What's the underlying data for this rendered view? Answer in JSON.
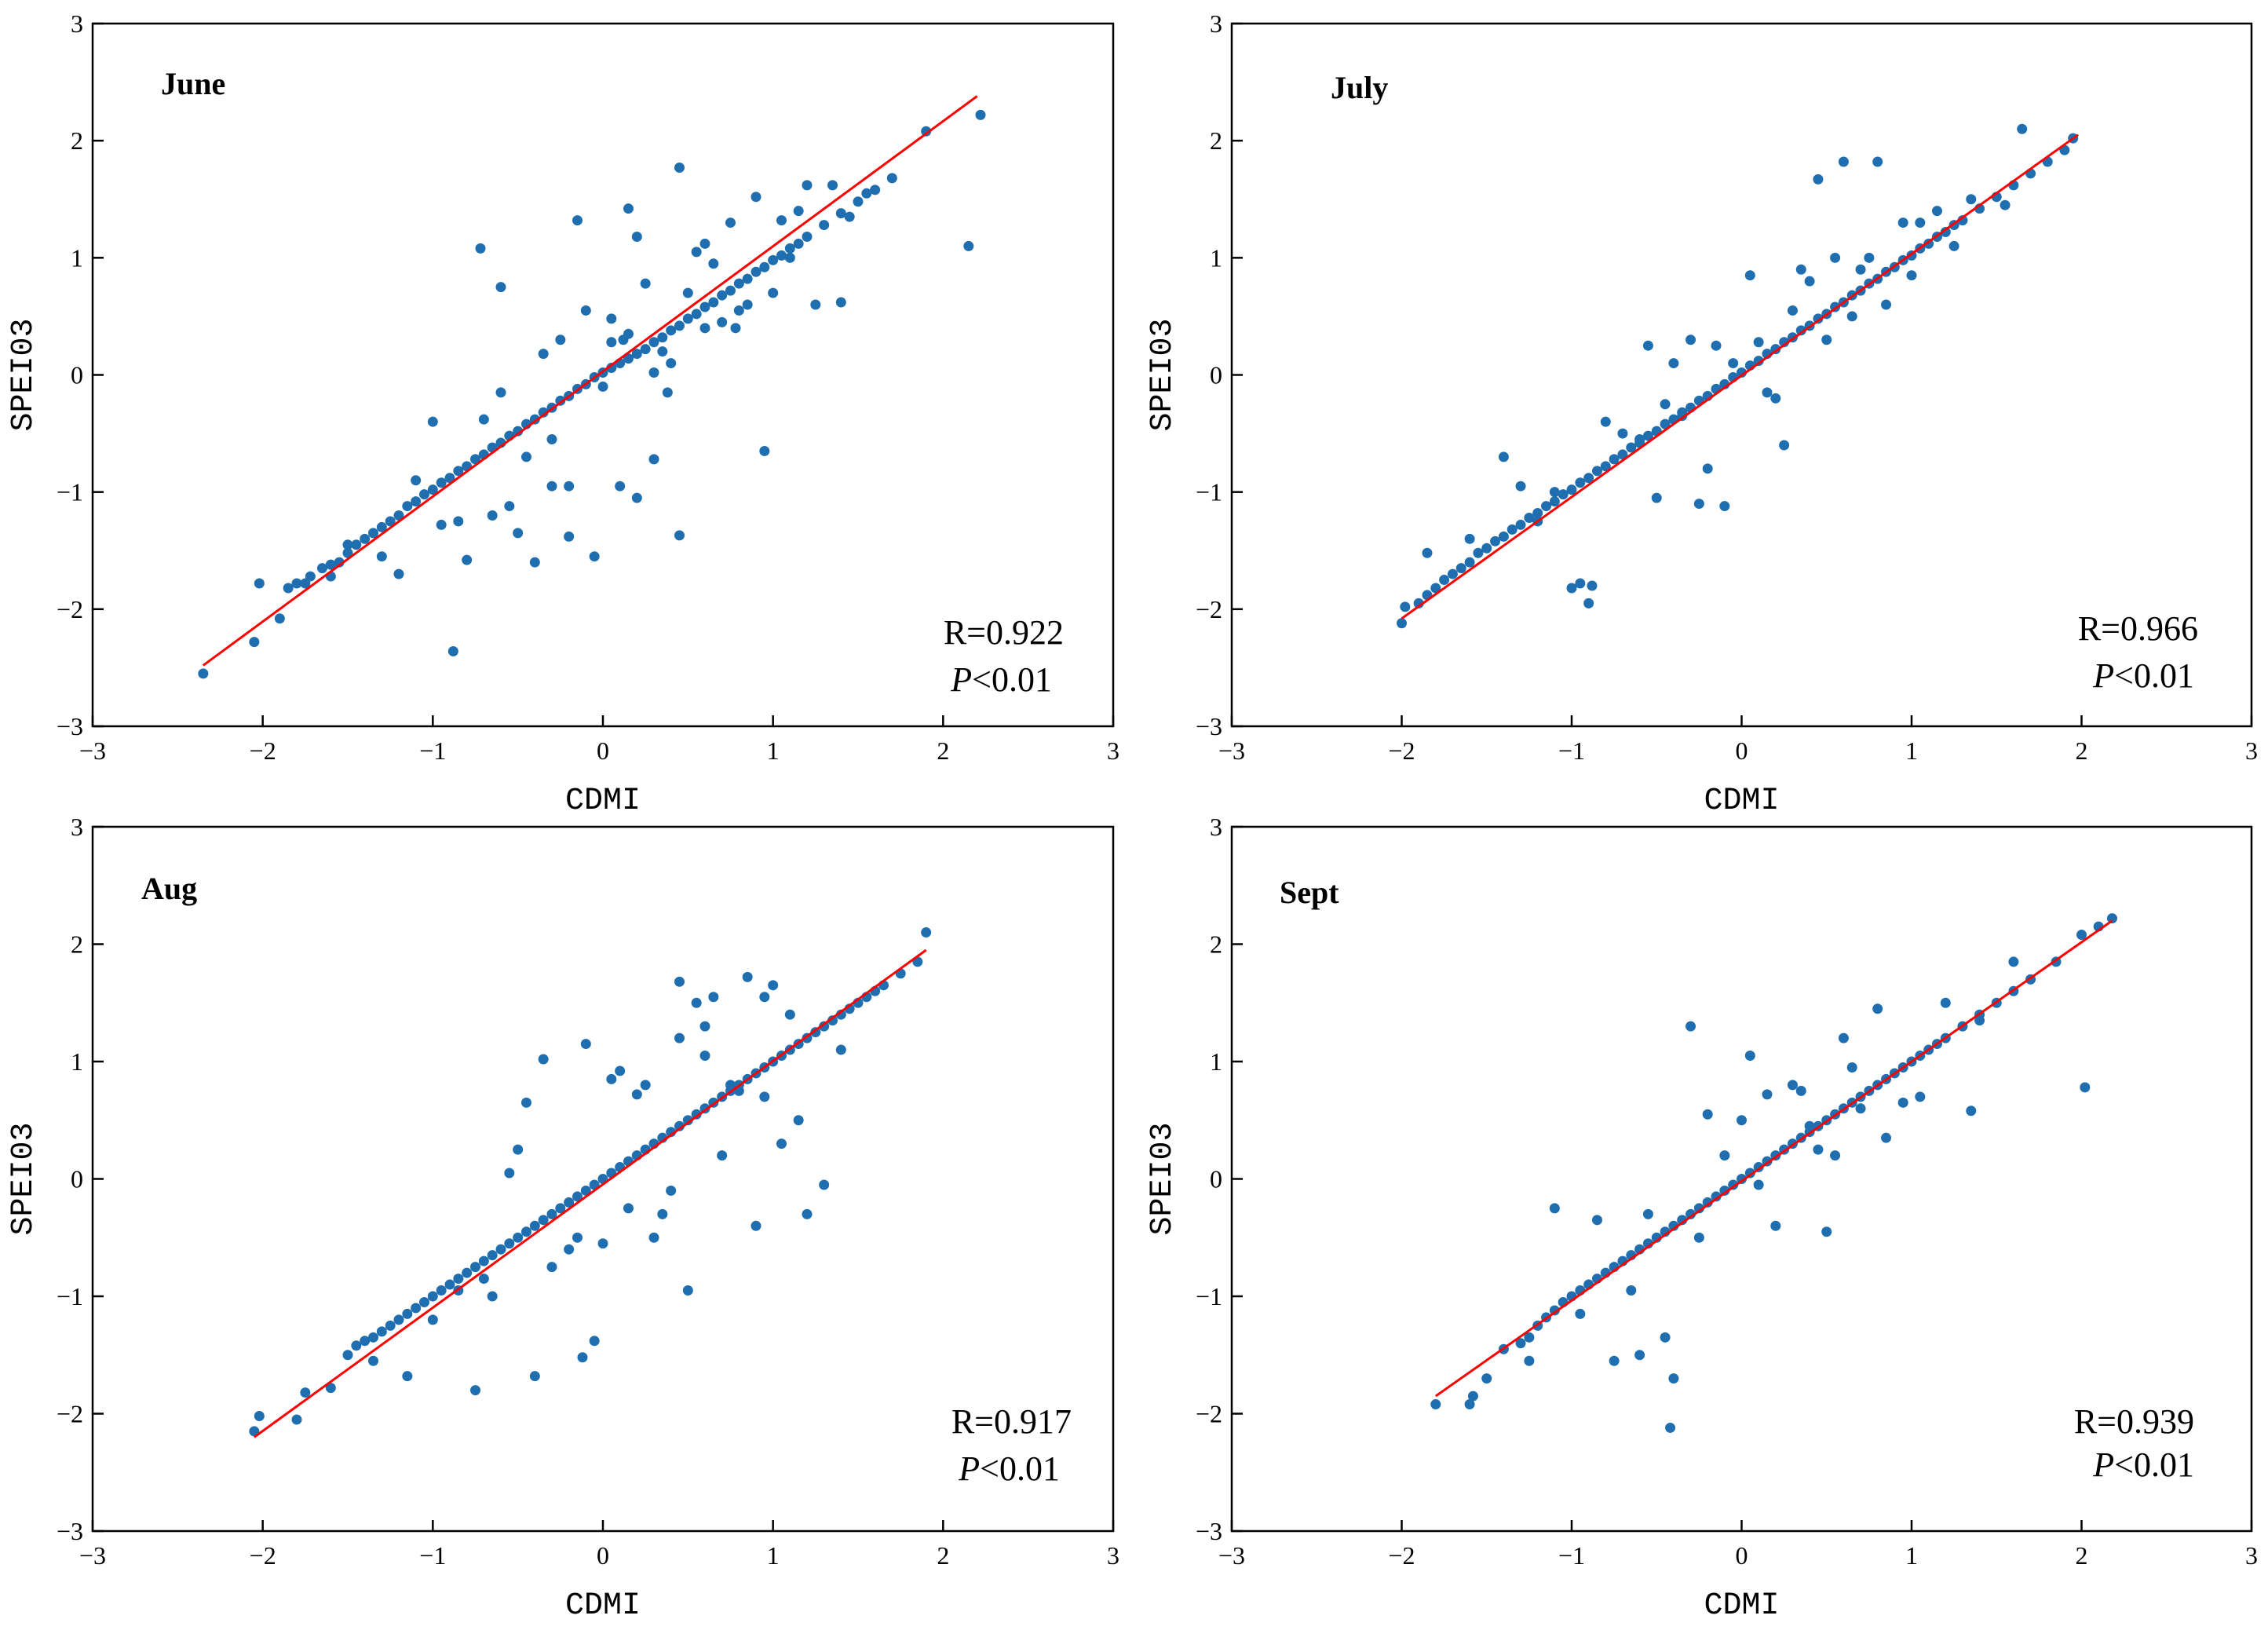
{
  "chart_data": [
    {
      "type": "scatter",
      "title": "June",
      "xlabel": "CDMI",
      "ylabel": "SPEI03",
      "xlim": [
        -3,
        3
      ],
      "ylim": [
        -3,
        3
      ],
      "xticks": [
        "−3",
        "−2",
        "−1",
        "0",
        "1",
        "2",
        "3"
      ],
      "yticks": [
        "−3",
        "−2",
        "−1",
        "0",
        "1",
        "2",
        "3"
      ],
      "r_text": "R=0.922",
      "p_symbol": "P",
      "p_value": "<0.01",
      "fit": {
        "x": [
          -2.35,
          2.2
        ],
        "y": [
          -2.48,
          2.38
        ]
      },
      "point_color": "#1f6fb0",
      "fit_color": "#ff0000",
      "points": {
        "x": [
          -2.35,
          -2.05,
          -2.02,
          -1.9,
          -1.85,
          -1.8,
          -1.72,
          -1.65,
          -1.6,
          -1.55,
          -1.5,
          -1.45,
          -1.4,
          -1.35,
          -1.3,
          -1.25,
          -1.2,
          -1.15,
          -1.1,
          -1.05,
          -1.0,
          -0.95,
          -0.9,
          -0.85,
          -0.8,
          -0.75,
          -0.7,
          -0.65,
          -0.6,
          -0.55,
          -0.5,
          -0.45,
          -0.4,
          -0.35,
          -0.3,
          -0.25,
          -0.2,
          -0.15,
          -0.1,
          -0.05,
          0.0,
          0.05,
          0.1,
          0.15,
          0.2,
          0.25,
          0.3,
          0.35,
          0.4,
          0.45,
          0.5,
          0.55,
          0.6,
          0.65,
          0.7,
          0.75,
          0.8,
          0.85,
          0.9,
          0.95,
          1.0,
          1.05,
          1.1,
          1.15,
          1.2,
          1.3,
          1.4,
          1.5,
          1.6,
          1.7,
          1.9,
          2.15,
          2.22,
          -0.72,
          -0.6,
          -0.15,
          0.15,
          0.45,
          0.95,
          1.4,
          -1.0,
          -0.88,
          -0.5,
          -0.4,
          -0.2,
          -0.05,
          0.2,
          0.45,
          0.3,
          0.1,
          -0.3,
          -0.8,
          0.6,
          0.2,
          0.25,
          0.7,
          0.9,
          1.2,
          -1.5,
          -1.6,
          -1.2,
          -0.6,
          -0.35,
          -0.1,
          0.05,
          0.35,
          0.55,
          0.8,
          1.05,
          1.25,
          -1.75,
          -1.3,
          -0.95,
          -0.7,
          -0.45,
          -0.25,
          0.0,
          0.15,
          0.4,
          0.65,
          0.85,
          1.1,
          1.35,
          1.55,
          -0.65,
          -0.3,
          0.05,
          0.3,
          0.6,
          0.75,
          1.0,
          -1.1,
          -0.85,
          -0.55,
          -0.2,
          0.12,
          0.38,
          0.5,
          0.78,
          1.15,
          1.45
        ],
        "y": [
          -2.55,
          -2.28,
          -1.78,
          -2.08,
          -1.82,
          -1.78,
          -1.72,
          -1.65,
          -1.62,
          -1.6,
          -1.52,
          -1.45,
          -1.4,
          -1.35,
          -1.3,
          -1.25,
          -1.2,
          -1.12,
          -1.08,
          -1.02,
          -0.98,
          -0.92,
          -0.88,
          -0.82,
          -0.78,
          -0.72,
          -0.68,
          -0.62,
          -0.58,
          -0.52,
          -0.48,
          -0.42,
          -0.38,
          -0.32,
          -0.28,
          -0.22,
          -0.18,
          -0.12,
          -0.08,
          -0.02,
          0.02,
          0.06,
          0.1,
          0.14,
          0.18,
          0.22,
          0.28,
          0.32,
          0.38,
          0.42,
          0.48,
          0.52,
          0.58,
          0.62,
          0.68,
          0.72,
          0.78,
          0.82,
          0.88,
          0.92,
          0.98,
          1.02,
          1.08,
          1.12,
          1.18,
          1.28,
          1.38,
          1.48,
          1.58,
          1.68,
          2.08,
          1.1,
          2.22,
          1.08,
          0.75,
          1.32,
          1.42,
          1.77,
          -0.65,
          0.62,
          -0.4,
          -2.36,
          -1.35,
          -1.6,
          -1.38,
          -1.55,
          -1.05,
          -1.37,
          -0.72,
          -0.95,
          -0.95,
          -1.58,
          1.12,
          1.18,
          0.78,
          0.45,
          1.52,
          1.62,
          -1.45,
          -1.72,
          -1.7,
          -0.15,
          0.18,
          0.55,
          0.48,
          0.2,
          1.05,
          0.55,
          1.32,
          0.6,
          -1.78,
          -1.55,
          -1.28,
          -0.38,
          -0.7,
          0.3,
          -0.1,
          0.35,
          0.1,
          0.95,
          0.6,
          1.0,
          1.62,
          1.55,
          -1.2,
          -0.55,
          0.28,
          0.02,
          0.4,
          1.3,
          0.7,
          -0.9,
          -1.25,
          -1.12,
          -0.95,
          0.3,
          -0.15,
          0.7,
          0.4,
          1.4,
          1.35
        ]
      }
    },
    {
      "type": "scatter",
      "title": "July",
      "xlabel": "CDMI",
      "ylabel": "SPEI03",
      "xlim": [
        -3,
        3
      ],
      "ylim": [
        -3,
        3
      ],
      "xticks": [
        "−3",
        "−2",
        "−1",
        "0",
        "1",
        "2",
        "3"
      ],
      "yticks": [
        "−3",
        "−2",
        "−1",
        "0",
        "1",
        "2",
        "3"
      ],
      "r_text": "R=0.966",
      "p_symbol": "P",
      "p_value": "<0.01",
      "fit": {
        "x": [
          -2.0,
          1.98
        ],
        "y": [
          -2.08,
          2.05
        ]
      },
      "point_color": "#1f6fb0",
      "fit_color": "#ff0000",
      "points": {
        "x": [
          -2.0,
          -1.98,
          -1.9,
          -1.85,
          -1.8,
          -1.75,
          -1.7,
          -1.65,
          -1.6,
          -1.55,
          -1.5,
          -1.45,
          -1.4,
          -1.35,
          -1.3,
          -1.25,
          -1.2,
          -1.15,
          -1.1,
          -1.05,
          -1.0,
          -0.95,
          -0.9,
          -0.85,
          -0.8,
          -0.75,
          -0.7,
          -0.65,
          -0.6,
          -0.55,
          -0.5,
          -0.45,
          -0.4,
          -0.35,
          -0.3,
          -0.25,
          -0.2,
          -0.15,
          -0.1,
          -0.05,
          0.0,
          0.05,
          0.1,
          0.15,
          0.2,
          0.25,
          0.3,
          0.35,
          0.4,
          0.45,
          0.5,
          0.55,
          0.6,
          0.65,
          0.7,
          0.75,
          0.8,
          0.85,
          0.9,
          0.95,
          1.0,
          1.05,
          1.1,
          1.15,
          1.2,
          1.25,
          1.3,
          1.4,
          1.5,
          1.6,
          1.7,
          1.8,
          1.9,
          1.95,
          1.65,
          -1.0,
          -0.95,
          -0.9,
          -0.88,
          -0.5,
          -0.25,
          -0.1,
          0.2,
          0.45,
          0.6,
          0.8,
          1.15,
          -1.4,
          -1.85,
          -0.55,
          -0.3,
          0.05,
          0.35,
          -0.4,
          -0.2,
          0.1,
          -0.15,
          0.25,
          0.55,
          0.95,
          -0.7,
          -0.6,
          -0.35,
          0.4,
          0.65,
          0.85,
          1.05,
          1.35,
          1.55,
          -1.2,
          -1.3,
          -0.8,
          -0.05,
          0.15,
          0.5,
          0.75,
          -1.6,
          -1.1,
          -0.45,
          0.3,
          0.7,
          1.0,
          1.25
        ],
        "y": [
          -2.12,
          -1.98,
          -1.95,
          -1.88,
          -1.82,
          -1.75,
          -1.7,
          -1.65,
          -1.6,
          -1.52,
          -1.48,
          -1.42,
          -1.38,
          -1.32,
          -1.28,
          -1.22,
          -1.18,
          -1.12,
          -1.08,
          -1.02,
          -0.98,
          -0.92,
          -0.88,
          -0.82,
          -0.78,
          -0.72,
          -0.68,
          -0.62,
          -0.58,
          -0.52,
          -0.48,
          -0.42,
          -0.38,
          -0.32,
          -0.28,
          -0.22,
          -0.18,
          -0.12,
          -0.08,
          -0.02,
          0.02,
          0.08,
          0.12,
          0.18,
          0.22,
          0.28,
          0.32,
          0.38,
          0.42,
          0.48,
          0.52,
          0.58,
          0.62,
          0.68,
          0.72,
          0.78,
          0.82,
          0.88,
          0.92,
          0.98,
          1.02,
          1.08,
          1.12,
          1.18,
          1.22,
          1.28,
          1.32,
          1.42,
          1.52,
          1.62,
          1.72,
          1.82,
          1.92,
          2.02,
          2.1,
          -1.82,
          -1.78,
          -1.95,
          -1.8,
          -1.05,
          -1.1,
          -1.12,
          -0.2,
          1.67,
          1.82,
          1.82,
          1.4,
          -0.7,
          -1.52,
          0.25,
          0.3,
          0.85,
          0.9,
          0.1,
          -0.8,
          0.28,
          0.25,
          -0.6,
          1.0,
          1.3,
          -0.5,
          -0.55,
          -0.35,
          0.8,
          0.5,
          0.6,
          1.3,
          1.5,
          1.45,
          -1.25,
          -0.95,
          -0.4,
          0.1,
          -0.15,
          0.3,
          1.0,
          -1.4,
          -1.0,
          -0.25,
          0.55,
          0.9,
          0.85,
          1.1
        ]
      }
    },
    {
      "type": "scatter",
      "title": "Aug",
      "xlabel": "CDMI",
      "ylabel": "SPEI03",
      "xlim": [
        -3,
        3
      ],
      "ylim": [
        -3,
        3
      ],
      "xticks": [
        "−3",
        "−2",
        "−1",
        "0",
        "1",
        "2",
        "3"
      ],
      "yticks": [
        "−3",
        "−2",
        "−1",
        "0",
        "1",
        "2",
        "3"
      ],
      "r_text": "R=0.917",
      "p_symbol": "P",
      "p_value": "<0.01",
      "fit": {
        "x": [
          -2.05,
          1.9
        ],
        "y": [
          -2.2,
          1.95
        ]
      },
      "point_color": "#1f6fb0",
      "fit_color": "#ff0000",
      "points": {
        "x": [
          -2.05,
          -2.02,
          -1.8,
          -1.75,
          -1.6,
          -1.5,
          -1.45,
          -1.4,
          -1.35,
          -1.3,
          -1.25,
          -1.2,
          -1.15,
          -1.1,
          -1.05,
          -1.0,
          -0.95,
          -0.9,
          -0.85,
          -0.8,
          -0.75,
          -0.7,
          -0.65,
          -0.6,
          -0.55,
          -0.5,
          -0.45,
          -0.4,
          -0.35,
          -0.3,
          -0.25,
          -0.2,
          -0.15,
          -0.1,
          -0.05,
          0.0,
          0.05,
          0.1,
          0.15,
          0.2,
          0.25,
          0.3,
          0.35,
          0.4,
          0.45,
          0.5,
          0.55,
          0.6,
          0.65,
          0.7,
          0.75,
          0.8,
          0.85,
          0.9,
          0.95,
          1.0,
          1.05,
          1.1,
          1.15,
          1.2,
          1.25,
          1.3,
          1.35,
          1.4,
          1.45,
          1.5,
          1.55,
          1.6,
          1.65,
          1.75,
          1.85,
          1.9,
          -0.75,
          -0.4,
          -0.12,
          -0.05,
          -0.35,
          -0.1,
          0.1,
          0.45,
          0.55,
          0.65,
          0.85,
          1.0,
          1.15,
          1.3,
          -1.35,
          -1.15,
          -0.85,
          -0.55,
          -0.3,
          0.0,
          0.2,
          0.35,
          0.6,
          0.75,
          0.95,
          1.2,
          -0.65,
          -0.45,
          0.05,
          0.3,
          0.5,
          0.7,
          0.9,
          1.05,
          -1.0,
          -0.7,
          -0.2,
          0.15,
          0.4,
          0.8,
          1.1,
          1.4,
          -0.5,
          0.25,
          0.45,
          0.95,
          -0.15,
          0.6
        ],
        "y": [
          -2.15,
          -2.02,
          -2.05,
          -1.82,
          -1.78,
          -1.5,
          -1.42,
          -1.38,
          -1.35,
          -1.3,
          -1.25,
          -1.2,
          -1.15,
          -1.1,
          -1.05,
          -1.0,
          -0.95,
          -0.9,
          -0.85,
          -0.8,
          -0.75,
          -0.7,
          -0.65,
          -0.6,
          -0.55,
          -0.5,
          -0.45,
          -0.4,
          -0.35,
          -0.3,
          -0.25,
          -0.2,
          -0.15,
          -0.1,
          -0.05,
          0.0,
          0.05,
          0.1,
          0.15,
          0.2,
          0.25,
          0.3,
          0.35,
          0.4,
          0.45,
          0.5,
          0.55,
          0.6,
          0.65,
          0.7,
          0.75,
          0.8,
          0.85,
          0.9,
          0.95,
          1.0,
          1.05,
          1.1,
          1.15,
          1.2,
          1.25,
          1.3,
          1.35,
          1.4,
          1.45,
          1.5,
          1.55,
          1.6,
          1.65,
          1.75,
          1.85,
          2.1,
          -1.8,
          -1.68,
          -1.52,
          -1.38,
          1.02,
          1.15,
          0.92,
          1.68,
          1.5,
          1.55,
          1.72,
          1.65,
          0.5,
          -0.05,
          -1.55,
          -1.68,
          -0.95,
          0.05,
          -0.75,
          -0.55,
          0.72,
          -0.3,
          1.05,
          0.8,
          1.55,
          -0.3,
          -1.0,
          0.65,
          0.85,
          -0.5,
          -0.95,
          0.2,
          -0.4,
          0.3,
          -1.2,
          -0.85,
          -0.6,
          -0.25,
          -0.1,
          0.75,
          1.4,
          1.1,
          0.25,
          0.8,
          1.2,
          0.7,
          -0.5,
          1.3
        ]
      }
    },
    {
      "type": "scatter",
      "title": "Sept",
      "xlabel": "CDMI",
      "ylabel": "SPEI03",
      "xlim": [
        -3,
        3
      ],
      "ylim": [
        -3,
        3
      ],
      "xticks": [
        "−3",
        "−2",
        "−1",
        "0",
        "1",
        "2",
        "3"
      ],
      "yticks": [
        "−3",
        "−2",
        "−1",
        "0",
        "1",
        "2",
        "3"
      ],
      "r_text": "R=0.939",
      "p_symbol": "P",
      "p_value": "<0.01",
      "fit": {
        "x": [
          -1.8,
          2.18
        ],
        "y": [
          -1.85,
          2.2
        ]
      },
      "point_color": "#1f6fb0",
      "fit_color": "#ff0000",
      "points": {
        "x": [
          -1.8,
          -1.6,
          -1.58,
          -1.5,
          -1.4,
          -1.3,
          -1.25,
          -1.2,
          -1.15,
          -1.1,
          -1.05,
          -1.0,
          -0.95,
          -0.9,
          -0.85,
          -0.8,
          -0.75,
          -0.7,
          -0.65,
          -0.6,
          -0.55,
          -0.5,
          -0.45,
          -0.4,
          -0.35,
          -0.3,
          -0.25,
          -0.2,
          -0.15,
          -0.1,
          -0.05,
          0.0,
          0.05,
          0.1,
          0.15,
          0.2,
          0.25,
          0.3,
          0.35,
          0.4,
          0.45,
          0.5,
          0.55,
          0.6,
          0.65,
          0.7,
          0.75,
          0.8,
          0.85,
          0.9,
          0.95,
          1.0,
          1.05,
          1.1,
          1.15,
          1.2,
          1.3,
          1.4,
          1.5,
          1.6,
          1.7,
          1.85,
          2.0,
          2.1,
          2.18,
          2.02,
          -0.3,
          -0.4,
          -0.42,
          -0.6,
          -0.75,
          -1.1,
          0.05,
          0.2,
          0.5,
          0.85,
          1.35,
          1.6,
          -0.45,
          -0.2,
          0.1,
          0.35,
          0.65,
          0.95,
          1.2,
          -0.85,
          -0.55,
          -0.1,
          0.3,
          0.55,
          0.8,
          1.05,
          -1.25,
          -0.95,
          -0.65,
          -0.25,
          0.0,
          0.4,
          0.7,
          0.15,
          0.45,
          0.6,
          1.4
        ],
        "y": [
          -1.92,
          -1.92,
          -1.85,
          -1.7,
          -1.45,
          -1.4,
          -1.35,
          -1.25,
          -1.18,
          -1.12,
          -1.05,
          -1.0,
          -0.95,
          -0.9,
          -0.85,
          -0.8,
          -0.75,
          -0.7,
          -0.65,
          -0.6,
          -0.55,
          -0.5,
          -0.45,
          -0.4,
          -0.35,
          -0.3,
          -0.25,
          -0.2,
          -0.15,
          -0.1,
          -0.05,
          0.0,
          0.05,
          0.1,
          0.15,
          0.2,
          0.25,
          0.3,
          0.35,
          0.4,
          0.45,
          0.5,
          0.55,
          0.6,
          0.65,
          0.7,
          0.75,
          0.8,
          0.85,
          0.9,
          0.95,
          1.0,
          1.05,
          1.1,
          1.15,
          1.2,
          1.3,
          1.4,
          1.5,
          1.6,
          1.7,
          1.85,
          2.08,
          2.15,
          2.22,
          0.78,
          1.3,
          -1.7,
          -2.12,
          -1.5,
          -1.55,
          -0.25,
          1.05,
          -0.4,
          -0.45,
          0.35,
          0.58,
          1.85,
          -1.35,
          0.55,
          -0.05,
          0.75,
          0.95,
          0.65,
          1.5,
          -0.35,
          -0.3,
          0.2,
          0.8,
          0.2,
          1.45,
          0.7,
          -1.55,
          -1.15,
          -0.95,
          -0.5,
          0.5,
          0.45,
          0.6,
          0.72,
          0.25,
          1.2,
          1.35
        ]
      }
    }
  ]
}
